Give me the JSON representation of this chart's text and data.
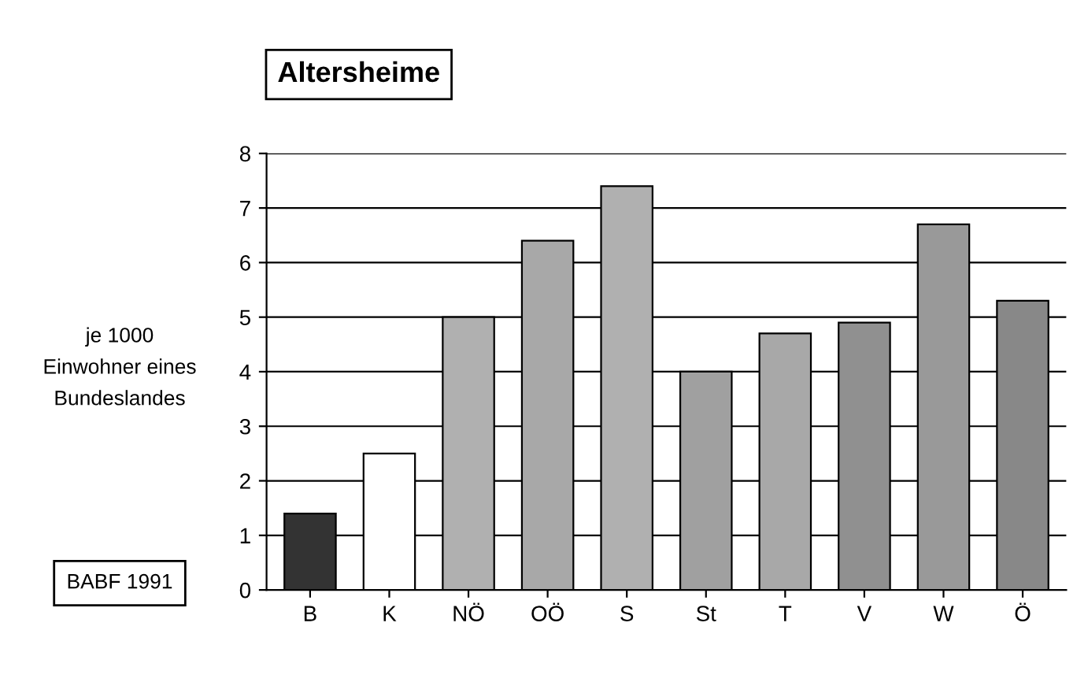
{
  "chart_data": {
    "type": "bar",
    "title": "Altersheime",
    "ylabel": "je 1000\nEinwohner eines\nBundeslandes",
    "categories": [
      "B",
      "K",
      "NÖ",
      "OÖ",
      "S",
      "St",
      "T",
      "V",
      "W",
      "Ö"
    ],
    "values": [
      1.4,
      2.5,
      5.0,
      6.4,
      7.4,
      4.0,
      4.7,
      4.9,
      6.7,
      5.3
    ],
    "colors": [
      "#333333",
      "#ffffff",
      "#b0b0b0",
      "#a8a8a8",
      "#b0b0b0",
      "#a0a0a0",
      "#a8a8a8",
      "#909090",
      "#999999",
      "#888888"
    ],
    "ylim": [
      0,
      8
    ],
    "yticks": [
      0,
      1,
      2,
      3,
      4,
      5,
      6,
      7,
      8
    ],
    "grid": "y",
    "legend": false,
    "annotations": [
      "BABF 1991"
    ]
  }
}
